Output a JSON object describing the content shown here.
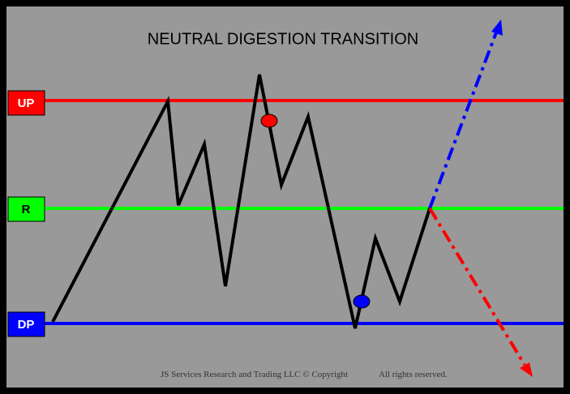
{
  "title": "NEUTRAL DIGESTION TRANSITION",
  "levels": [
    {
      "label": "UP"
    },
    {
      "label": "R"
    },
    {
      "label": "DP"
    }
  ],
  "footer": {
    "copyright": "JS Services Research and Trading LLC © Copyright",
    "rights": "All rights reserved."
  }
}
